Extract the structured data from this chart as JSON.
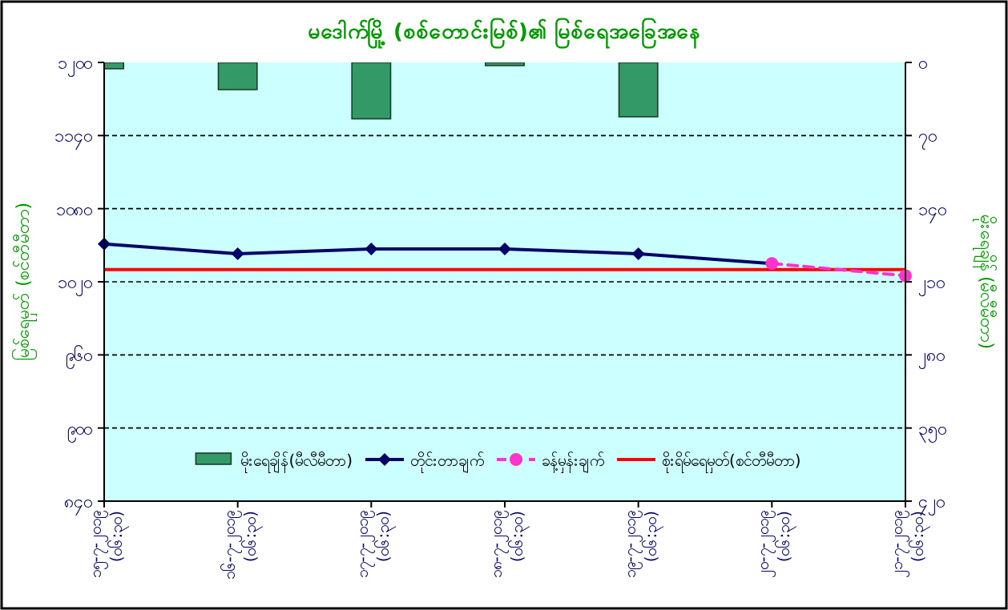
{
  "chart_data": {
    "type": "bar",
    "title": "မဒေါက်မြို့ (စစ်တောင်းမြစ်)၏ မြစ်ရေအခြေအနေ",
    "ylabel": "မြစ်ရေမှတ် (စင်တီမီတာ)",
    "y2label": "မိုးရေချိန် (မီလီမီတာ)",
    "categories": [
      "၁၅-၇-၂၀၁၉ (၀၆:၃၀)",
      "၁၆-၇-၂၀၁၉ (၀၆:၃၀)",
      "၁၇-၇-၂၀၁၉ (၀၆:၃၀)",
      "၁၈-၇-၂၀၁၉ (၀၆:၃၀)",
      "၁၉-၇-၂၀၁၉ (၀၆:၃၀)",
      "၂၀-၇-၂၀၁၉ (၀၆:၃၀)",
      "၂၁-၇-၂၀၁၉ (၀၆:၃၀)"
    ],
    "series": [
      {
        "name": "မိုးရေချိန်(မီလီမီတာ)",
        "axis": "y2",
        "color": "#339966",
        "values": [
          6,
          26,
          54,
          3,
          52,
          null,
          null
        ]
      },
      {
        "name": "တိုင်းတာချက်",
        "type": "line",
        "color": "#000066",
        "marker": "diamond",
        "values": [
          1051,
          1043,
          1047,
          1047,
          1043,
          1035,
          null
        ]
      },
      {
        "name": "ခန့်မှန်းချက်",
        "type": "line",
        "color": "#ff33cc",
        "marker": "circle",
        "line_style": "dashed",
        "values": [
          null,
          null,
          null,
          null,
          null,
          1035,
          1025
        ]
      }
    ],
    "ref_lines": [
      {
        "axis": "y",
        "value": 1030,
        "label": "စိုးရိမ်ရေမှတ်(စင်တီမီတာ)",
        "color": "#ff0000"
      }
    ],
    "ylim": [
      840,
      1200
    ],
    "yticks": [
      {
        "value": 840,
        "label": "၈၄၀"
      },
      {
        "value": 900,
        "label": "၉၀၀"
      },
      {
        "value": 960,
        "label": "၉၆၀"
      },
      {
        "value": 1020,
        "label": "၁၀၂၀"
      },
      {
        "value": 1080,
        "label": "၁၀၈၀"
      },
      {
        "value": 1140,
        "label": "၁၁၄၀"
      },
      {
        "value": 1200,
        "label": "၁၂၀၀"
      }
    ],
    "y2lim": [
      420,
      0
    ],
    "y2ticks": [
      {
        "value": 0,
        "label": "၀"
      },
      {
        "value": 70,
        "label": "၇၀"
      },
      {
        "value": 140,
        "label": "၁၄၀"
      },
      {
        "value": 210,
        "label": "၂၁၀"
      },
      {
        "value": 280,
        "label": "၂၈၀"
      },
      {
        "value": 350,
        "label": "၃၅၀"
      },
      {
        "value": 420,
        "label": "၄၂၀"
      }
    ],
    "grid": "y",
    "legend": "bottom"
  }
}
